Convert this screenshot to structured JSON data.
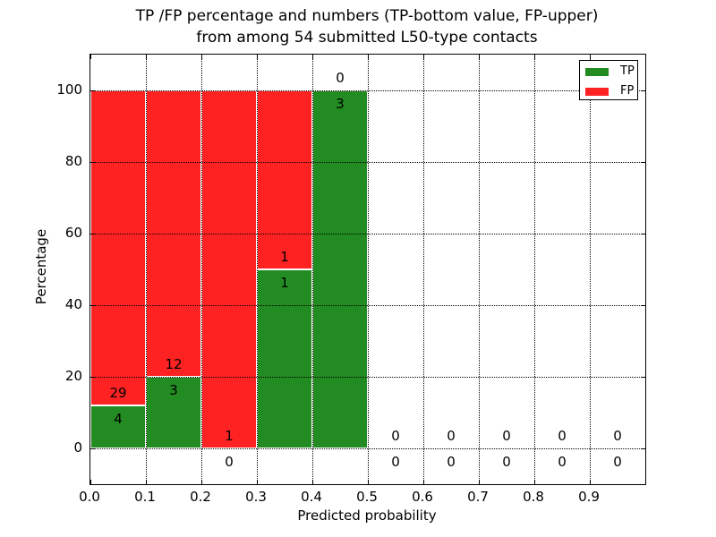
{
  "figure": {
    "title_line1": "TP /FP percentage and numbers (TP-bottom value, FP-upper)",
    "title_line2": "from among 54 submitted L50-type contacts",
    "background": "#ffffff"
  },
  "chart_data": {
    "type": "bar",
    "subtype": "stacked-percentage-histogram",
    "title": "TP /FP percentage and numbers (TP-bottom value, FP-upper)\nfrom among 54 submitted L50-type contacts",
    "xlabel": "Predicted probability",
    "ylabel": "Percentage",
    "total_contacts": 54,
    "xlim": [
      0.0,
      1.0
    ],
    "ylim": [
      -10,
      110
    ],
    "grid": true,
    "grid_style": "dotted",
    "x_tick_values": [
      0.0,
      0.1,
      0.2,
      0.3,
      0.4,
      0.5,
      0.6,
      0.7,
      0.8,
      0.9
    ],
    "x_ticks": [
      "0.0",
      "0.1",
      "0.2",
      "0.3",
      "0.4",
      "0.5",
      "0.6",
      "0.7",
      "0.8",
      "0.9"
    ],
    "y_tick_values": [
      0,
      20,
      40,
      60,
      80,
      100
    ],
    "y_ticks": [
      "0",
      "20",
      "40",
      "60",
      "80",
      "100"
    ],
    "bin_width": 0.1,
    "bin_starts": [
      0.0,
      0.1,
      0.2,
      0.3,
      0.4,
      0.5,
      0.6,
      0.7,
      0.8,
      0.9
    ],
    "series": [
      {
        "name": "TP",
        "color": "#228b22",
        "counts": [
          4,
          3,
          0,
          1,
          3,
          0,
          0,
          0,
          0,
          0
        ]
      },
      {
        "name": "FP",
        "color": "#ff2222",
        "counts": [
          29,
          12,
          1,
          1,
          0,
          0,
          0,
          0,
          0,
          0
        ]
      }
    ],
    "tp_percent": [
      12.12,
      20,
      0,
      50,
      100,
      null,
      null,
      null,
      null,
      null
    ],
    "bar_edge_color": "#ffffff",
    "legend": {
      "position": "upper right",
      "entries": [
        {
          "label": "TP",
          "color": "#228b22"
        },
        {
          "label": "FP",
          "color": "#ff2222"
        }
      ]
    }
  }
}
